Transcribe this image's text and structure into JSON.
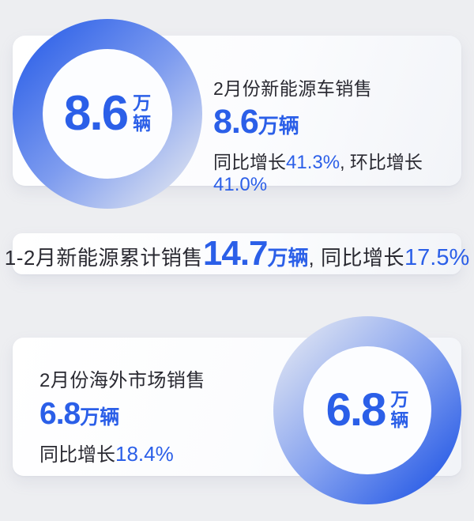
{
  "colors": {
    "background": "#edeef1",
    "card": "#ffffff",
    "accent_blue": "#2b5fe8",
    "ring_deep_blue": "#2156e5",
    "ring_light": "#e0e5f1",
    "dark_text": "#2a2a32"
  },
  "chart_data": {
    "type": "table",
    "metrics": [
      {
        "label": "2月份新能源车销售",
        "value": 8.6,
        "unit": "万辆",
        "yoy_growth_pct": 41.3,
        "mom_growth_pct": 41.0
      },
      {
        "label": "1-2月新能源累计销售",
        "value": 14.7,
        "unit": "万辆",
        "yoy_growth_pct": 17.5
      },
      {
        "label": "2月份海外市场销售",
        "value": 6.8,
        "unit": "万辆",
        "yoy_growth_pct": 18.4
      }
    ]
  },
  "top_section": {
    "ring_value": "8.6",
    "ring_unit_top": "万",
    "ring_unit_bottom": "辆",
    "title": "2月份新能源车销售",
    "value": "8.6",
    "unit": "万辆",
    "yoy_label": "同比增长",
    "yoy_value": "41.3%",
    "comma": ", ",
    "mom_label": "环比增长",
    "mom_value": "41.0%"
  },
  "middle_banner": {
    "prefix": "1-2月新能源累计销售",
    "value": "14.7",
    "unit": "万辆",
    "comma": ", ",
    "yoy_label": "同比增长",
    "yoy_value": "17.5%"
  },
  "bottom_section": {
    "title": "2月份海外市场销售",
    "value": "6.8",
    "unit": "万辆",
    "yoy_label": "同比增长",
    "yoy_value": "18.4%",
    "ring_value": "6.8",
    "ring_unit_top": "万",
    "ring_unit_bottom": "辆"
  }
}
